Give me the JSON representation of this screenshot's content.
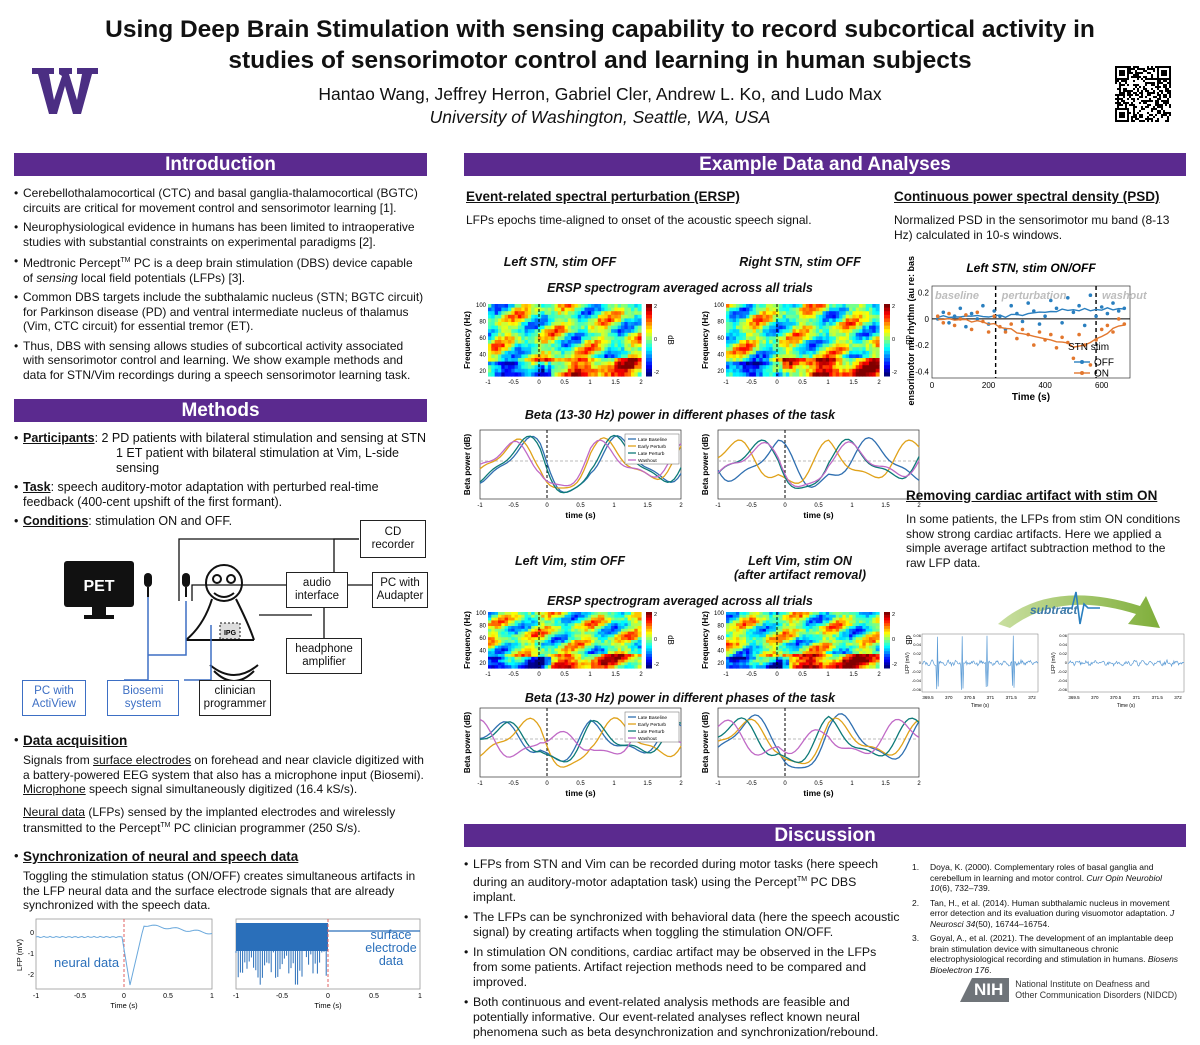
{
  "header": {
    "title_line1": "Using Deep Brain Stimulation with sensing capability to record subcortical activity in",
    "title_line2": "studies of sensorimotor control and learning in human subjects",
    "authors": "Hantao Wang, Jeffrey Herron, Gabriel Cler, Andrew L. Ko, and Ludo Max",
    "affiliation": "University of Washington, Seattle, WA, USA",
    "logo_letter": "W"
  },
  "colors": {
    "uw_purple": "#4b2e83",
    "bar_purple": "#5b2a8f",
    "trace_blue": "#3d7fc4"
  },
  "intro": {
    "heading": "Introduction",
    "b1": "Cerebellothalamocortical (CTC) and basal ganglia-thalamocortical (BGTC) circuits are critical for movement control and sensorimotor learning [1].",
    "b2": "Neurophysiological evidence in humans has been limited to intraoperative studies with substantial constraints on experimental paradigms [2].",
    "b3a": "Medtronic Percept",
    "b3tm": "TM",
    "b3b": " PC is a deep brain stimulation (DBS) device capable of ",
    "b3em": "sensing",
    "b3c": " local field potentials (LFPs) [3].",
    "b4": "Common DBS targets include the subthalamic nucleus (STN; BGTC circuit) for Parkinson disease (PD) and ventral intermediate nucleus of thalamus (Vim, CTC circuit) for essential tremor (ET).",
    "b5": "Thus, DBS with sensing allows studies of subcortical activity associated with sensorimotor control and learning. We show example methods and data for STN/Vim recordings during a speech sensorimotor learning task."
  },
  "methods": {
    "heading": "Methods",
    "participants_label": "Participants",
    "participants_text1": ": 2 PD patients with bilateral stimulation and sensing at STN",
    "participants_text2": "1 ET patient with bilateral stimulation at Vim, L-side sensing",
    "task_label": "Task",
    "task_text": ": speech auditory-motor adaptation with perturbed real-time feedback (400-cent upshift of the first formant).",
    "conditions_label": "Conditions",
    "conditions_text": ": stimulation ON and OFF.",
    "diagram": {
      "pet": "PET",
      "cd": "CD\nrecorder",
      "audio": "audio\ninterface",
      "pcaud": "PC with\nAudapter",
      "headphone": "headphone\namplifier",
      "pcact": "PC with\nActiView",
      "biosemi": "Biosemi\nsystem",
      "clinician": "clinician\nprogrammer",
      "ipg": "IPG"
    },
    "acq_label": "Data acquisition",
    "acq_p1a": "Signals from ",
    "acq_p1u": "surface electrodes",
    "acq_p1b": " on forehead and near clavicle digitized with a battery-powered EEG system that also has a microphone input (Biosemi).",
    "acq_p2u": "Microphone",
    "acq_p2b": " speech signal simultaneously digitized (16.4 kS/s).",
    "acq_p3u": "Neural data",
    "acq_p3b": " (LFPs) sensed by the implanted electrodes and wirelessly transmitted to the Percept",
    "acq_p3tm": "TM",
    "acq_p3c": " PC clinician programmer (250 S/s).",
    "sync_label": "Synchronization of neural and speech data",
    "sync_text": "Toggling the stimulation status (ON/OFF) creates simultaneous artifacts in the LFP neural data and the surface electrode signals that are already synchronized with the speech data.",
    "plot_neural_label": "neural data",
    "plot_surface_label": "surface\nelectrode\ndata",
    "plot_ylabel": "LFP (mV)",
    "plot_xlabel": "Time (s)",
    "plot_yticks": [
      "0",
      "-1",
      "-2"
    ],
    "plot_xticks": [
      "-1",
      "-0.5",
      "0",
      "0.5",
      "1"
    ]
  },
  "example": {
    "heading": "Example Data and Analyses",
    "ersp_title": "Event-related spectral perturbation (ERSP)",
    "ersp_desc": "LFPs epochs time-aligned to onset of the acoustic speech signal.",
    "stn_left": "Left STN, stim OFF",
    "stn_right": "Right STN, stim OFF",
    "spec_title": "ERSP spectrogram averaged across all trials",
    "beta_title": "Beta (13-30 Hz) power in different phases of the task",
    "vim_left": "Left Vim, stim OFF",
    "vim_right1": "Left Vim, stim ON",
    "vim_right2": "(after artifact removal)",
    "freq_label": "Frequency (Hz)",
    "db_label": "dB",
    "beta_ylabel": "Beta power (dB)",
    "time_label": "time (s)",
    "spec_yticks": [
      "100",
      "80",
      "60",
      "40",
      "20"
    ],
    "spec_xticks": [
      "-1",
      "-0.5",
      "0",
      "0.5",
      "1",
      "1.5",
      "2"
    ],
    "cbar_ticks": [
      "2",
      "0",
      "-2"
    ],
    "legend": [
      "Late Baseline",
      "Early Perturb",
      "Late Perturb",
      "Washout"
    ],
    "psd_title": "Continuous power spectral density (PSD)",
    "psd_desc": "Normalized PSD in the sensorimotor mu band (8-13 Hz) calculated in 10-s windows.",
    "artifact_title": "Removing cardiac artifact with stim ON",
    "artifact_desc": "In some patients, the LFPs from stim ON conditions show strong cardiac artifacts. Here we applied a simple  average artifact subtraction method to the raw LFP data.",
    "subtract_label": "subtract",
    "lfp_ylabel": "LFP (mV)",
    "lfp_xlabel": "Time (s)",
    "lfp_xticks": [
      "369.5",
      "370",
      "370.5",
      "371",
      "371.5",
      "372"
    ],
    "lfp_yticks": [
      "0.06",
      "0.04",
      "0.02",
      "0",
      "-0.02",
      "-0.04",
      "-0.06"
    ]
  },
  "chart_data": [
    {
      "type": "scatter",
      "title": "Left STN, stim ON/OFF",
      "xlabel": "Time (s)",
      "ylabel": "PSD sensorimotor mu rhythm (au re: baseline)",
      "xlim": [
        0,
        700
      ],
      "ylim": [
        -0.45,
        0.25
      ],
      "xticks": [
        "0",
        "200",
        "400",
        "600"
      ],
      "yticks": [
        "0.2",
        "0",
        "-0.2",
        "-0.4"
      ],
      "phase_labels": [
        "baseline",
        "perturbation",
        "washout"
      ],
      "phase_boundaries": [
        225,
        580
      ],
      "legend_title": "STN stim",
      "series": [
        {
          "name": "OFF",
          "color": "#2a7fbf",
          "x": [
            20,
            40,
            60,
            80,
            100,
            120,
            140,
            160,
            180,
            200,
            220,
            240,
            260,
            280,
            300,
            320,
            340,
            360,
            380,
            400,
            420,
            440,
            460,
            480,
            500,
            520,
            540,
            560,
            580,
            600,
            620,
            640,
            660,
            680
          ],
          "y": [
            0.0,
            0.05,
            -0.03,
            0.02,
            0.08,
            -0.06,
            0.04,
            0.0,
            0.1,
            -0.04,
            0.06,
            0.02,
            -0.08,
            0.1,
            0.04,
            -0.02,
            0.12,
            0.06,
            -0.04,
            0.02,
            0.14,
            0.08,
            -0.03,
            0.16,
            0.05,
            0.1,
            -0.05,
            0.18,
            0.02,
            0.09,
            0.04,
            0.12,
            0.06,
            0.08
          ]
        },
        {
          "name": "ON",
          "color": "#e2772e",
          "x": [
            20,
            40,
            60,
            80,
            100,
            120,
            140,
            160,
            180,
            200,
            220,
            240,
            260,
            280,
            300,
            320,
            340,
            360,
            380,
            400,
            420,
            440,
            460,
            480,
            500,
            520,
            540,
            560,
            580,
            600,
            620,
            640,
            660,
            680
          ],
          "y": [
            0.02,
            -0.03,
            0.04,
            -0.05,
            0.0,
            0.03,
            -0.08,
            0.05,
            -0.02,
            -0.1,
            0.02,
            -0.06,
            -0.1,
            -0.04,
            -0.15,
            -0.08,
            -0.12,
            -0.2,
            -0.1,
            -0.16,
            -0.12,
            -0.22,
            -0.14,
            -0.18,
            -0.3,
            -0.12,
            -0.2,
            -0.35,
            -0.16,
            -0.08,
            -0.05,
            -0.1,
            0.0,
            -0.04
          ]
        }
      ]
    }
  ],
  "discussion": {
    "heading": "Discussion",
    "b1a": "LFPs from STN and Vim can be recorded during motor tasks (here speech during an auditory-motor adaptation task) using the Percept",
    "b1tm": "TM",
    "b1b": " PC DBS implant.",
    "b2": "The LFPs can be synchronized with behavioral data (here the speech acoustic signal) by creating artifacts when toggling the stimulation ON/OFF.",
    "b3": "In stimulation ON conditions, cardiac artifact may be observed in the LFPs from some patients. Artifact rejection methods need to be compared and improved.",
    "b4": "Both continuous and event-related analysis methods are feasible and potentially informative. Our event-related analyses reflect known neural phenomena such as beta desynchronization and synchronization/rebound.",
    "ref1a": "Doya, K. (2000). Complementary roles of basal ganglia and cerebellum in learning and motor control. ",
    "ref1j": "Curr Opin Neurobiol 10",
    "ref1b": "(6), 732–739.",
    "ref2a": "Tan, H., et al. (2014). Human subthalamic nucleus in movement error detection and its evaluation during visuomotor adaptation. ",
    "ref2j": "J Neurosci 34",
    "ref2b": "(50), 16744–16754.",
    "ref3a": "Goyal, A., et al. (2021). The development of an implantable deep brain stimulation device with simultaneous chronic electrophysiological recording and stimulation in humans. ",
    "ref3j": "Biosens Bioelectron 176",
    "ref3b": ".",
    "nih_logo": "NIH",
    "nih_name1": "National Institute on Deafness and",
    "nih_name2": "Other Communication Disorders (NIDCD)"
  }
}
